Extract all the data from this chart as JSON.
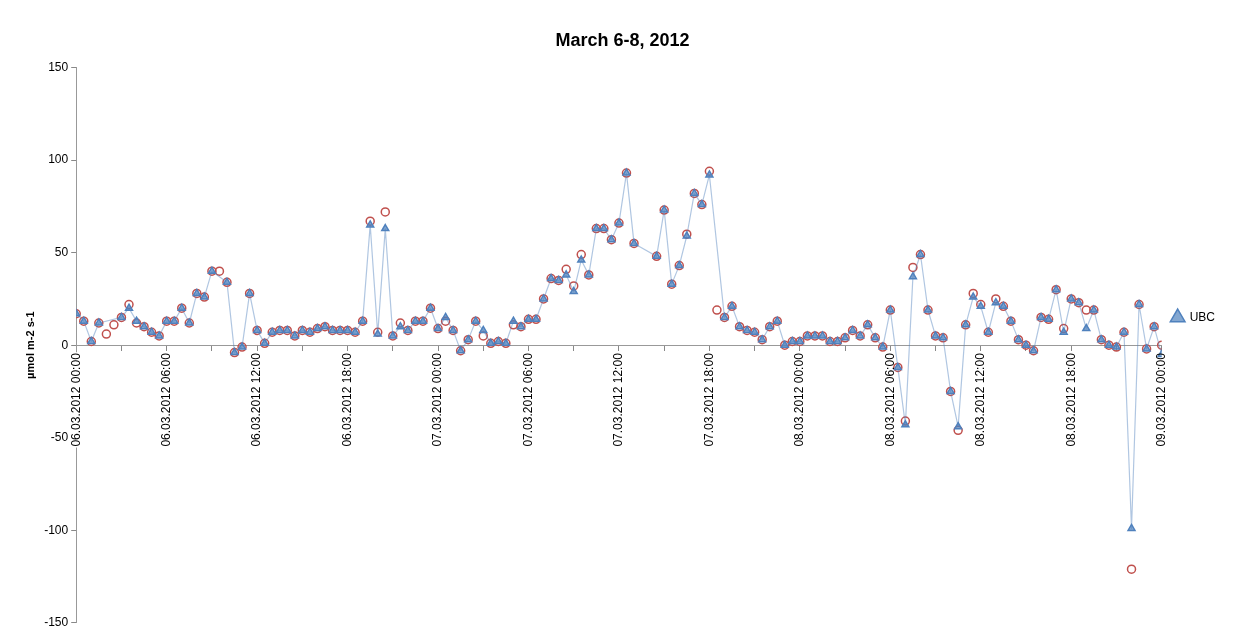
{
  "chart_data": {
    "type": "line",
    "title": "March 6-8, 2012",
    "ylabel": "µmol m-2 s-1",
    "legend": "right",
    "xlim": [
      "2012-03-06T00:00",
      "2012-03-09T00:00"
    ],
    "xticks": [
      {
        "value": "2012-03-06T00:00",
        "label": "06.03.2012 00:00"
      },
      {
        "value": "2012-03-06T03:00",
        "label": null
      },
      {
        "value": "2012-03-06T06:00",
        "label": "06.03.2012 06:00"
      },
      {
        "value": "2012-03-06T09:00",
        "label": null
      },
      {
        "value": "2012-03-06T12:00",
        "label": "06.03.2012 12:00"
      },
      {
        "value": "2012-03-06T15:00",
        "label": null
      },
      {
        "value": "2012-03-06T18:00",
        "label": "06.03.2012 18:00"
      },
      {
        "value": "2012-03-06T21:00",
        "label": null
      },
      {
        "value": "2012-03-07T00:00",
        "label": "07.03.2012 00:00"
      },
      {
        "value": "2012-03-07T03:00",
        "label": null
      },
      {
        "value": "2012-03-07T06:00",
        "label": "07.03.2012 06:00"
      },
      {
        "value": "2012-03-07T09:00",
        "label": null
      },
      {
        "value": "2012-03-07T12:00",
        "label": "07.03.2012 12:00"
      },
      {
        "value": "2012-03-07T15:00",
        "label": null
      },
      {
        "value": "2012-03-07T18:00",
        "label": "07.03.2012 18:00"
      },
      {
        "value": "2012-03-07T21:00",
        "label": null
      },
      {
        "value": "2012-03-08T00:00",
        "label": "08.03.2012 00:00"
      },
      {
        "value": "2012-03-08T03:00",
        "label": null
      },
      {
        "value": "2012-03-08T06:00",
        "label": "08.03.2012 06:00"
      },
      {
        "value": "2012-03-08T09:00",
        "label": null
      },
      {
        "value": "2012-03-08T12:00",
        "label": "08.03.2012 12:00"
      },
      {
        "value": "2012-03-08T15:00",
        "label": null
      },
      {
        "value": "2012-03-08T18:00",
        "label": "08.03.2012 18:00"
      },
      {
        "value": "2012-03-08T21:00",
        "label": null
      },
      {
        "value": "2012-03-09T00:00",
        "label": "09.03.2012 00:00"
      }
    ],
    "ylim": [
      -150,
      150
    ],
    "yticks": [
      -150,
      -100,
      -50,
      0,
      50,
      100,
      150
    ],
    "x": [
      "2012-03-06T00:00",
      "2012-03-06T00:30",
      "2012-03-06T01:00",
      "2012-03-06T01:30",
      "2012-03-06T02:00",
      "2012-03-06T02:30",
      "2012-03-06T03:00",
      "2012-03-06T03:30",
      "2012-03-06T04:00",
      "2012-03-06T04:30",
      "2012-03-06T05:00",
      "2012-03-06T05:30",
      "2012-03-06T06:00",
      "2012-03-06T06:30",
      "2012-03-06T07:00",
      "2012-03-06T07:30",
      "2012-03-06T08:00",
      "2012-03-06T08:30",
      "2012-03-06T09:00",
      "2012-03-06T09:30",
      "2012-03-06T10:00",
      "2012-03-06T10:30",
      "2012-03-06T11:00",
      "2012-03-06T11:30",
      "2012-03-06T12:00",
      "2012-03-06T12:30",
      "2012-03-06T13:00",
      "2012-03-06T13:30",
      "2012-03-06T14:00",
      "2012-03-06T14:30",
      "2012-03-06T15:00",
      "2012-03-06T15:30",
      "2012-03-06T16:00",
      "2012-03-06T16:30",
      "2012-03-06T17:00",
      "2012-03-06T17:30",
      "2012-03-06T18:00",
      "2012-03-06T18:30",
      "2012-03-06T19:00",
      "2012-03-06T19:30",
      "2012-03-06T20:00",
      "2012-03-06T20:30",
      "2012-03-06T21:00",
      "2012-03-06T21:30",
      "2012-03-06T22:00",
      "2012-03-06T22:30",
      "2012-03-06T23:00",
      "2012-03-06T23:30",
      "2012-03-07T00:00",
      "2012-03-07T00:30",
      "2012-03-07T01:00",
      "2012-03-07T01:30",
      "2012-03-07T02:00",
      "2012-03-07T02:30",
      "2012-03-07T03:00",
      "2012-03-07T03:30",
      "2012-03-07T04:00",
      "2012-03-07T04:30",
      "2012-03-07T05:00",
      "2012-03-07T05:30",
      "2012-03-07T06:00",
      "2012-03-07T06:30",
      "2012-03-07T07:00",
      "2012-03-07T07:30",
      "2012-03-07T08:00",
      "2012-03-07T08:30",
      "2012-03-07T09:00",
      "2012-03-07T09:30",
      "2012-03-07T10:00",
      "2012-03-07T10:30",
      "2012-03-07T11:00",
      "2012-03-07T11:30",
      "2012-03-07T12:00",
      "2012-03-07T12:30",
      "2012-03-07T13:00",
      "2012-03-07T14:30",
      "2012-03-07T15:00",
      "2012-03-07T15:30",
      "2012-03-07T16:00",
      "2012-03-07T16:30",
      "2012-03-07T17:00",
      "2012-03-07T17:30",
      "2012-03-07T18:00",
      "2012-03-07T18:30",
      "2012-03-07T19:00",
      "2012-03-07T19:30",
      "2012-03-07T20:00",
      "2012-03-07T20:30",
      "2012-03-07T21:00",
      "2012-03-07T21:30",
      "2012-03-07T22:00",
      "2012-03-07T22:30",
      "2012-03-07T23:00",
      "2012-03-07T23:30",
      "2012-03-08T00:00",
      "2012-03-08T00:30",
      "2012-03-08T01:00",
      "2012-03-08T01:30",
      "2012-03-08T02:00",
      "2012-03-08T02:30",
      "2012-03-08T03:00",
      "2012-03-08T03:30",
      "2012-03-08T04:00",
      "2012-03-08T04:30",
      "2012-03-08T05:00",
      "2012-03-08T05:30",
      "2012-03-08T06:00",
      "2012-03-08T06:30",
      "2012-03-08T07:00",
      "2012-03-08T07:30",
      "2012-03-08T08:00",
      "2012-03-08T08:30",
      "2012-03-08T09:00",
      "2012-03-08T09:30",
      "2012-03-08T10:00",
      "2012-03-08T10:30",
      "2012-03-08T11:00",
      "2012-03-08T11:30",
      "2012-03-08T12:00",
      "2012-03-08T12:30",
      "2012-03-08T13:00",
      "2012-03-08T13:30",
      "2012-03-08T14:00",
      "2012-03-08T14:30",
      "2012-03-08T15:00",
      "2012-03-08T15:30",
      "2012-03-08T16:00",
      "2012-03-08T16:30",
      "2012-03-08T17:00",
      "2012-03-08T17:30",
      "2012-03-08T18:00",
      "2012-03-08T18:30",
      "2012-03-08T19:00",
      "2012-03-08T19:30",
      "2012-03-08T20:00",
      "2012-03-08T20:30",
      "2012-03-08T21:00",
      "2012-03-08T21:30",
      "2012-03-08T22:00",
      "2012-03-08T22:30",
      "2012-03-08T23:00",
      "2012-03-08T23:30",
      "2012-03-09T00:00"
    ],
    "series": [
      {
        "name": "UBC",
        "type": "line",
        "marker": "triangle",
        "line_style": "solid",
        "color": "#4f81bd",
        "values": [
          17,
          13,
          2,
          12,
          null,
          null,
          15,
          20,
          13,
          10,
          7,
          5,
          13,
          13,
          20,
          12,
          28,
          26,
          40,
          null,
          34,
          -4,
          -1,
          28,
          8,
          1,
          7,
          8,
          8,
          5,
          8,
          7,
          9,
          10,
          8,
          8,
          8,
          7,
          13,
          65,
          6,
          63,
          5,
          10,
          8,
          13,
          13,
          20,
          9,
          15,
          8,
          -3,
          3,
          13,
          8,
          1,
          2,
          1,
          13,
          10,
          14,
          14,
          25,
          36,
          35,
          38,
          29,
          46,
          38,
          63,
          63,
          57,
          66,
          93,
          55,
          48,
          73,
          33,
          43,
          59,
          82,
          76,
          92,
          null,
          15,
          21,
          10,
          8,
          7,
          3,
          10,
          13,
          0,
          2,
          2,
          5,
          5,
          5,
          2,
          2,
          4,
          8,
          5,
          11,
          4,
          -1,
          19,
          -12,
          -43,
          37,
          49,
          19,
          5,
          4,
          -25,
          -44,
          11,
          26,
          21,
          7,
          23,
          21,
          13,
          3,
          0,
          -3,
          15,
          14,
          30,
          7,
          25,
          23,
          9,
          19,
          3,
          0,
          -1,
          7,
          -99,
          22,
          -2,
          10,
          -5
        ]
      },
      {
        "type": "scatter",
        "marker": "circle",
        "color": "#c0504d",
        "values": [
          17,
          13,
          2,
          12,
          6,
          11,
          15,
          22,
          12,
          10,
          7,
          5,
          13,
          13,
          20,
          12,
          28,
          26,
          40,
          40,
          34,
          -4,
          -1,
          28,
          8,
          1,
          7,
          8,
          8,
          5,
          8,
          7,
          9,
          10,
          8,
          8,
          8,
          7,
          13,
          67,
          7,
          72,
          5,
          12,
          8,
          13,
          13,
          20,
          9,
          13,
          8,
          -3,
          3,
          13,
          5,
          1,
          2,
          1,
          11,
          10,
          14,
          14,
          25,
          36,
          35,
          41,
          32,
          49,
          38,
          63,
          63,
          57,
          66,
          93,
          55,
          48,
          73,
          33,
          43,
          60,
          82,
          76,
          94,
          19,
          15,
          21,
          10,
          8,
          7,
          3,
          10,
          13,
          0,
          2,
          2,
          5,
          5,
          5,
          2,
          2,
          4,
          8,
          5,
          11,
          4,
          -1,
          19,
          -12,
          -41,
          42,
          49,
          19,
          5,
          4,
          -25,
          -46,
          11,
          28,
          22,
          7,
          25,
          21,
          13,
          3,
          0,
          -3,
          15,
          14,
          30,
          9,
          25,
          23,
          19,
          19,
          3,
          0,
          -1,
          7,
          -121,
          22,
          -2,
          10,
          0
        ]
      }
    ]
  }
}
